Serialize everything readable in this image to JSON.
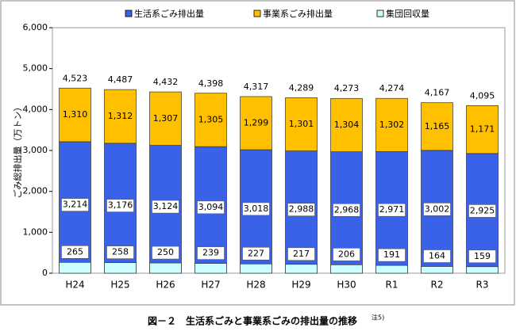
{
  "chart_data": {
    "type": "bar",
    "categories": [
      "H24",
      "H25",
      "H26",
      "H27",
      "H28",
      "H29",
      "H30",
      "R1",
      "R2",
      "R3"
    ],
    "series": [
      {
        "name": "生活系ごみ排出量",
        "color": "#3a62e8",
        "values": [
          3214,
          3176,
          3124,
          3094,
          3018,
          2988,
          2968,
          2971,
          3002,
          2925
        ],
        "value_labels": [
          "3,214",
          "3,176",
          "3,124",
          "3,094",
          "3,018",
          "2,988",
          "2,968",
          "2,971",
          "3,002",
          "2,925"
        ]
      },
      {
        "name": "事業系ごみ排出量",
        "color": "#ffc000",
        "stacked": true,
        "values": [
          1310,
          1312,
          1307,
          1305,
          1299,
          1301,
          1304,
          1302,
          1165,
          1171
        ],
        "value_labels": [
          "1,310",
          "1,312",
          "1,307",
          "1,305",
          "1,299",
          "1,301",
          "1,304",
          "1,302",
          "1,165",
          "1,171"
        ]
      },
      {
        "name": "集団回収量",
        "color": "#ccffff",
        "overlay": true,
        "values": [
          265,
          258,
          250,
          239,
          227,
          217,
          206,
          191,
          164,
          159
        ]
      }
    ],
    "totals": [
      4523,
      4487,
      4432,
      4398,
      4317,
      4289,
      4273,
      4274,
      4167,
      4095
    ],
    "total_labels": [
      "4,523",
      "4,487",
      "4,432",
      "4,398",
      "4,317",
      "4,289",
      "4,273",
      "4,274",
      "4,167",
      "4,095"
    ],
    "ylabel": "ごみ総排出量（万トン）",
    "ylim": [
      0,
      6000
    ],
    "yticks": [
      0,
      {
        "value": 1000,
        "label": "1,000"
      },
      {
        "value": 2000,
        "label": "2,000"
      },
      {
        "value": 3000,
        "label": "3,000"
      },
      {
        "value": 4000,
        "label": "4,000"
      },
      {
        "value": 5000,
        "label": "5,000"
      },
      {
        "value": 6000,
        "label": "6,000"
      }
    ],
    "caption": "図－２　生活系ごみと事業系ごみの排出量の推移",
    "caption_note": "注5)"
  }
}
